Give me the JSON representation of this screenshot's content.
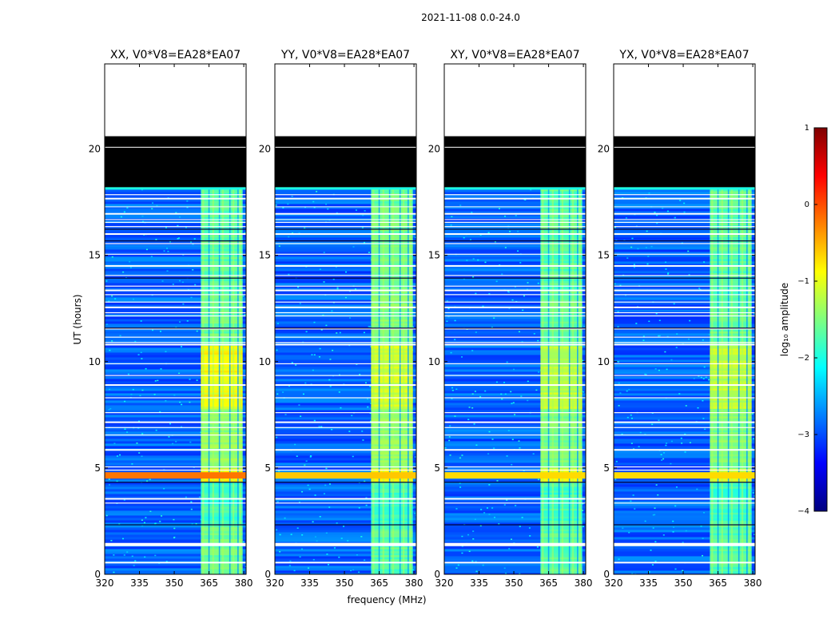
{
  "figure": {
    "suptitle": "2021-11-08 0.0-24.0",
    "xlabel": "frequency (MHz)",
    "ylabel": "UT (hours)"
  },
  "colorbar": {
    "label": "log₁₀ amplitude",
    "range": [
      -4,
      1
    ],
    "ticks": [
      -4,
      -3,
      -2,
      -1,
      0,
      1
    ],
    "tick_labels": [
      "−4",
      "−3",
      "−2",
      "−1",
      "0",
      "1"
    ],
    "colormap": "jet",
    "colors": [
      "#00007f",
      "#0000ff",
      "#007fff",
      "#00ffff",
      "#7fff7f",
      "#ffff00",
      "#ff7f00",
      "#ff0000",
      "#7f0000"
    ]
  },
  "chart_data": [
    {
      "type": "heatmap",
      "title": "XX, V0*V8=EA28*EA07",
      "xlim": [
        320,
        381
      ],
      "ylim": [
        0,
        24
      ],
      "xticks": [
        320,
        335,
        350,
        365,
        380
      ],
      "yticks": [
        0,
        5,
        10,
        15,
        20
      ],
      "rfi_band_mhz": [
        361.5,
        379.5
      ],
      "rfi_channels_mhz": [
        362.5,
        366.8,
        371.0,
        375.5,
        378.5
      ],
      "rfi_level_by_time": [
        [
          0,
          2.4,
          -1.6
        ],
        [
          2.4,
          4.4,
          -1.8
        ],
        [
          4.4,
          5.0,
          -0.8
        ],
        [
          5.0,
          7.8,
          -1.4
        ],
        [
          7.8,
          10.8,
          -0.9
        ],
        [
          10.8,
          13.2,
          -1.6
        ],
        [
          13.2,
          18.2,
          -1.7
        ]
      ],
      "background_level": -2.9,
      "burst_hours": [
        4.5,
        4.8
      ],
      "burst_level": -0.2,
      "flagged_hours": [
        [
          18.2,
          20.6
        ]
      ],
      "no_data_hours": [
        [
          20.6,
          24
        ]
      ]
    },
    {
      "type": "heatmap",
      "title": "YY, V0*V8=EA28*EA07",
      "xlim": [
        320,
        381
      ],
      "ylim": [
        0,
        24
      ],
      "xticks": [
        320,
        335,
        350,
        365,
        380
      ],
      "yticks": [
        0,
        5,
        10,
        15,
        20
      ],
      "rfi_band_mhz": [
        361.5,
        379.5
      ],
      "rfi_channels_mhz": [
        362.5,
        366.8,
        371.0,
        375.5,
        378.5
      ],
      "rfi_level_by_time": [
        [
          0,
          2.4,
          -1.7
        ],
        [
          2.4,
          4.4,
          -1.8
        ],
        [
          4.4,
          5.0,
          -0.9
        ],
        [
          5.0,
          7.8,
          -1.4
        ],
        [
          7.8,
          10.8,
          -1.1
        ],
        [
          10.8,
          13.2,
          -1.5
        ],
        [
          13.2,
          18.2,
          -1.6
        ]
      ],
      "background_level": -2.9,
      "burst_hours": [
        4.5,
        4.8
      ],
      "burst_level": -0.6,
      "flagged_hours": [
        [
          18.2,
          20.6
        ]
      ],
      "no_data_hours": [
        [
          20.6,
          24
        ]
      ]
    },
    {
      "type": "heatmap",
      "title": "XY, V0*V8=EA28*EA07",
      "xlim": [
        320,
        381
      ],
      "ylim": [
        0,
        24
      ],
      "xticks": [
        320,
        335,
        350,
        365,
        380
      ],
      "yticks": [
        0,
        5,
        10,
        15,
        20
      ],
      "rfi_band_mhz": [
        361.5,
        379.5
      ],
      "rfi_channels_mhz": [
        362.5,
        366.8,
        371.0,
        375.5,
        378.5
      ],
      "rfi_level_by_time": [
        [
          0,
          2.4,
          -1.7
        ],
        [
          2.4,
          4.4,
          -1.8
        ],
        [
          4.4,
          5.0,
          -1.0
        ],
        [
          5.0,
          7.8,
          -1.5
        ],
        [
          7.8,
          10.8,
          -1.2
        ],
        [
          10.8,
          13.2,
          -1.6
        ],
        [
          13.2,
          18.2,
          -1.7
        ]
      ],
      "background_level": -2.9,
      "burst_hours": [
        4.5,
        4.8
      ],
      "burst_level": -0.7,
      "flagged_hours": [
        [
          18.2,
          20.6
        ]
      ],
      "no_data_hours": [
        [
          20.6,
          24
        ]
      ]
    },
    {
      "type": "heatmap",
      "title": "YX, V0*V8=EA28*EA07",
      "xlim": [
        320,
        381
      ],
      "ylim": [
        0,
        24
      ],
      "xticks": [
        320,
        335,
        350,
        365,
        380
      ],
      "yticks": [
        0,
        5,
        10,
        15,
        20
      ],
      "rfi_band_mhz": [
        361.5,
        379.5
      ],
      "rfi_channels_mhz": [
        362.5,
        366.8,
        371.0,
        375.5,
        378.5
      ],
      "rfi_level_by_time": [
        [
          0,
          2.4,
          -1.7
        ],
        [
          2.4,
          4.4,
          -1.8
        ],
        [
          4.4,
          5.0,
          -1.0
        ],
        [
          5.0,
          7.8,
          -1.5
        ],
        [
          7.8,
          10.8,
          -1.2
        ],
        [
          10.8,
          13.2,
          -1.6
        ],
        [
          13.2,
          18.2,
          -1.7
        ]
      ],
      "background_level": -2.9,
      "burst_hours": [
        4.5,
        4.8
      ],
      "burst_level": -0.7,
      "flagged_hours": [
        [
          18.2,
          20.6
        ]
      ],
      "no_data_hours": [
        [
          20.6,
          24
        ]
      ]
    }
  ]
}
